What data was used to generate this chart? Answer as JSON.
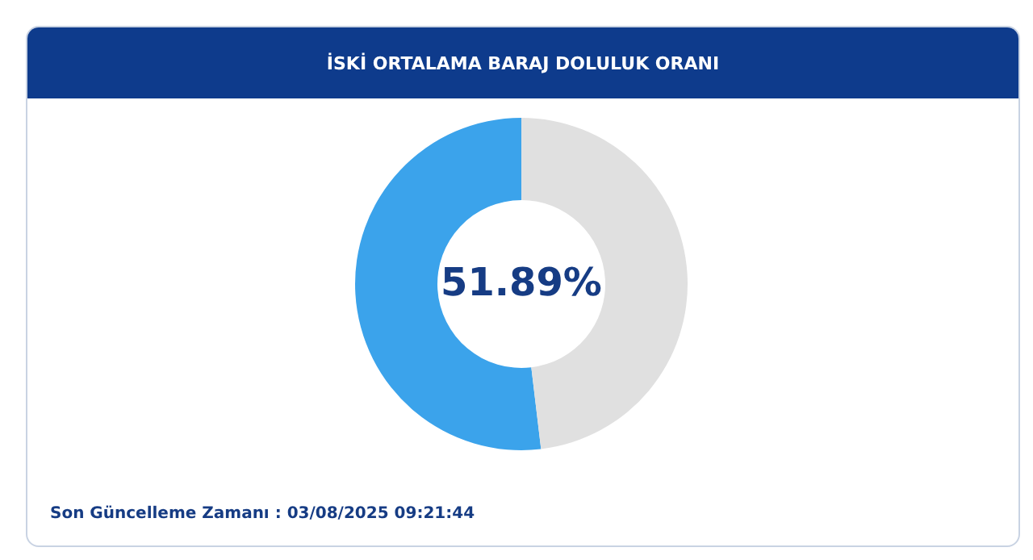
{
  "chart_data": {
    "type": "donut",
    "title": "İSKİ ORTALAMA BARAJ DOLULUK ORANI",
    "categories": [
      null,
      null
    ],
    "values": [
      51.89,
      48.11
    ],
    "colors": [
      "#3ba3eb",
      "#e0e0e0"
    ],
    "value_labels": [
      "51.89%",
      null
    ],
    "annotations": [
      "Son Güncelleme Zamanı : 03/08/2025 09:21:44"
    ]
  }
}
